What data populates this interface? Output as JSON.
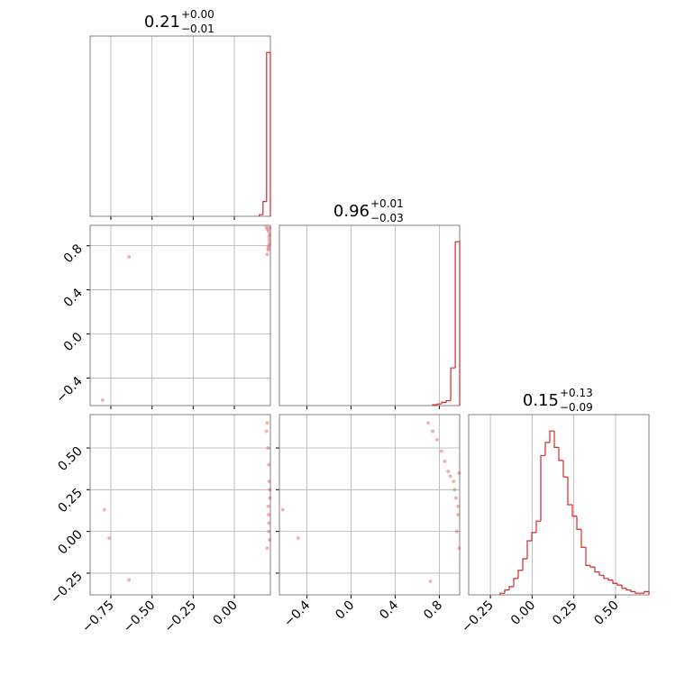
{
  "chart_data": {
    "type": "corner",
    "color": "#d62728",
    "grid": true,
    "params": [
      {
        "title": "0.21",
        "plus": "+0.00",
        "minus": "−0.01",
        "lim": [
          -0.876,
          0.219
        ],
        "ticks": [
          {
            "value": -0.75,
            "label": "−0.75"
          },
          {
            "value": -0.5,
            "label": "−0.50"
          },
          {
            "value": -0.25,
            "label": "−0.25"
          },
          {
            "value": 0,
            "label": "0.00"
          }
        ]
      },
      {
        "title": "0.96",
        "plus": "+0.01",
        "minus": "−0.03",
        "lim": [
          -0.65,
          0.985
        ],
        "ticks": [
          {
            "value": -0.4,
            "label": "−0.4"
          },
          {
            "value": 0,
            "label": "0.0"
          },
          0.4,
          0.8
        ]
      },
      {
        "title": "0.15",
        "plus": "+0.13",
        "minus": "−0.09",
        "lim": [
          -0.38,
          0.7
        ],
        "ticks": [
          {
            "value": -0.25,
            "label": "−0.25"
          },
          {
            "value": 0,
            "label": "0.00"
          },
          0.25,
          {
            "value": 0.5,
            "label": "0.50"
          }
        ]
      }
    ],
    "histograms": [
      {
        "bins": [
          0.152,
          0.174,
          0.196,
          0.219
        ],
        "values": [
          0.01,
          0.09,
          1.0
        ],
        "ylim": [
          0,
          1.1
        ]
      },
      {
        "bins": [
          0.74,
          0.781,
          0.822,
          0.863,
          0.904,
          0.945,
          0.985
        ],
        "values": [
          0.005,
          0.01,
          0.02,
          0.03,
          0.23,
          1.0
        ],
        "ylim": [
          0,
          1.1
        ]
      },
      {
        "bins": [
          -0.191,
          -0.164,
          -0.137,
          -0.11,
          -0.083,
          -0.056,
          -0.029,
          -0.002,
          0.025,
          0.052,
          0.079,
          0.106,
          0.133,
          0.16,
          0.187,
          0.214,
          0.241,
          0.268,
          0.295,
          0.322,
          0.349,
          0.376,
          0.403,
          0.43,
          0.457,
          0.484,
          0.511,
          0.538,
          0.565,
          0.592,
          0.619,
          0.646,
          0.673,
          0.7
        ],
        "values": [
          0.01,
          0.03,
          0.05,
          0.1,
          0.15,
          0.22,
          0.33,
          0.38,
          0.45,
          0.85,
          0.93,
          1.0,
          0.9,
          0.82,
          0.72,
          0.55,
          0.48,
          0.4,
          0.29,
          0.18,
          0.17,
          0.14,
          0.12,
          0.1,
          0.09,
          0.07,
          0.06,
          0.04,
          0.03,
          0.02,
          0.01,
          0.01,
          0.02
        ],
        "ylim": [
          0,
          1.1
        ]
      }
    ],
    "scatter": [
      {
        "x": [
          0.2,
          0.205,
          0.21,
          0.212,
          0.215,
          0.208,
          0.2,
          0.195,
          0.21,
          0.214,
          0.216,
          0.205,
          -0.64,
          -0.8
        ],
        "y": [
          0.72,
          0.76,
          0.8,
          0.85,
          0.9,
          0.93,
          0.95,
          0.97,
          0.88,
          0.82,
          0.96,
          0.78,
          0.7,
          -0.6
        ]
      },
      {
        "x": [
          0.2,
          0.205,
          0.21,
          0.212,
          0.215,
          0.208,
          0.21,
          0.214,
          0.216,
          0.205,
          0.21,
          0.2,
          0.195,
          -0.79,
          -0.76,
          -0.64
        ],
        "y": [
          0.65,
          0.5,
          0.4,
          0.3,
          0.2,
          0.1,
          0.0,
          -0.05,
          0.25,
          0.15,
          0.05,
          -0.1,
          0.6,
          0.13,
          -0.04,
          -0.29
        ]
      },
      {
        "x": [
          0.7,
          0.74,
          0.78,
          0.82,
          0.85,
          0.88,
          0.9,
          0.93,
          0.95,
          0.97,
          0.96,
          0.98,
          0.94,
          0.97,
          0.98,
          -0.62,
          -0.48,
          0.72
        ],
        "y": [
          0.65,
          0.6,
          0.55,
          0.48,
          0.42,
          0.36,
          0.33,
          0.3,
          0.2,
          0.1,
          0.0,
          -0.1,
          0.25,
          0.15,
          0.35,
          0.13,
          -0.04,
          -0.3
        ]
      }
    ]
  }
}
